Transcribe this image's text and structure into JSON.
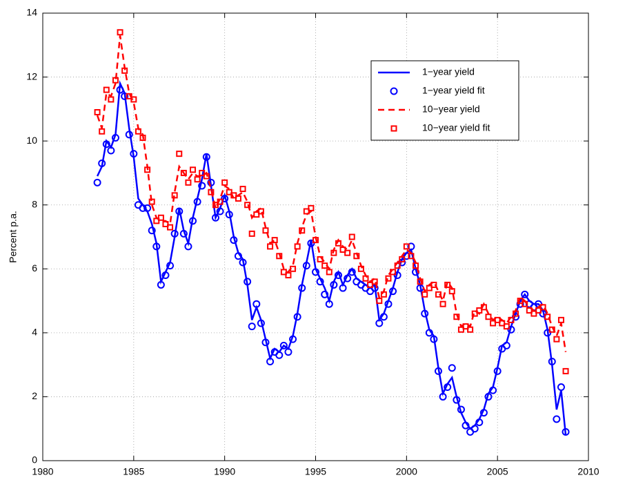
{
  "chart_data": {
    "type": "line",
    "ylabel": "Percent p.a.",
    "x": [
      1983,
      1983.25,
      1983.5,
      1983.75,
      1984,
      1984.25,
      1984.5,
      1984.75,
      1985,
      1985.25,
      1985.5,
      1985.75,
      1986,
      1986.25,
      1986.5,
      1986.75,
      1987,
      1987.25,
      1987.5,
      1987.75,
      1988,
      1988.25,
      1988.5,
      1988.75,
      1989,
      1989.25,
      1989.5,
      1989.75,
      1990,
      1990.25,
      1990.5,
      1990.75,
      1991,
      1991.25,
      1991.5,
      1991.75,
      1992,
      1992.25,
      1992.5,
      1992.75,
      1993,
      1993.25,
      1993.5,
      1993.75,
      1994,
      1994.25,
      1994.5,
      1994.75,
      1995,
      1995.25,
      1995.5,
      1995.75,
      1996,
      1996.25,
      1996.5,
      1996.75,
      1997,
      1997.25,
      1997.5,
      1997.75,
      1998,
      1998.25,
      1998.5,
      1998.75,
      1999,
      1999.25,
      1999.5,
      1999.75,
      2000,
      2000.25,
      2000.5,
      2000.75,
      2001,
      2001.25,
      2001.5,
      2001.75,
      2002,
      2002.25,
      2002.5,
      2002.75,
      2003,
      2003.25,
      2003.5,
      2003.75,
      2004,
      2004.25,
      2004.5,
      2004.75,
      2005,
      2005.25,
      2005.5,
      2005.75,
      2006,
      2006.25,
      2006.5,
      2006.75,
      2007,
      2007.25,
      2007.5,
      2007.75,
      2008,
      2008.25,
      2008.5,
      2008.75
    ],
    "series": [
      {
        "name": "1−year yield",
        "color": "#0000ff",
        "style": "solid",
        "values": [
          8.9,
          9.2,
          10.0,
          9.8,
          10.2,
          11.8,
          11.5,
          10.4,
          9.5,
          8.2,
          8.0,
          7.8,
          7.4,
          6.8,
          5.6,
          5.9,
          6.2,
          7.0,
          7.9,
          7.2,
          6.8,
          7.6,
          8.2,
          8.8,
          9.6,
          8.6,
          7.6,
          7.9,
          8.3,
          7.8,
          7.0,
          6.5,
          6.3,
          5.5,
          4.4,
          4.8,
          4.4,
          3.8,
          3.2,
          3.5,
          3.4,
          3.6,
          3.5,
          3.9,
          4.6,
          5.5,
          6.2,
          6.9,
          6.0,
          5.7,
          5.4,
          5.0,
          5.6,
          5.9,
          5.5,
          5.8,
          6.0,
          5.7,
          5.6,
          5.5,
          5.4,
          5.5,
          4.4,
          4.6,
          5.0,
          5.4,
          5.9,
          6.3,
          6.5,
          6.6,
          6.0,
          5.5,
          4.7,
          4.1,
          3.9,
          2.9,
          2.1,
          2.4,
          2.6,
          2.0,
          1.5,
          1.2,
          1.0,
          1.1,
          1.3,
          1.6,
          2.1,
          2.3,
          2.9,
          3.6,
          3.7,
          4.2,
          4.6,
          5.0,
          5.2,
          5.0,
          4.9,
          4.9,
          4.7,
          4.1,
          3.0,
          1.6,
          2.2,
          0.8
        ]
      },
      {
        "name": "1−year yield fit",
        "color": "#0000ff",
        "style": "circle",
        "values": [
          8.7,
          9.3,
          9.9,
          9.7,
          10.1,
          11.6,
          11.4,
          10.2,
          9.6,
          8.0,
          7.9,
          7.9,
          7.2,
          6.7,
          5.5,
          5.8,
          6.1,
          7.1,
          7.8,
          7.1,
          6.7,
          7.5,
          8.1,
          8.6,
          9.5,
          8.7,
          7.6,
          7.8,
          8.2,
          7.7,
          6.9,
          6.4,
          6.2,
          5.6,
          4.2,
          4.9,
          4.3,
          3.7,
          3.1,
          3.4,
          3.3,
          3.6,
          3.4,
          3.8,
          4.5,
          5.4,
          6.1,
          6.8,
          5.9,
          5.6,
          5.2,
          4.9,
          5.5,
          5.8,
          5.4,
          5.7,
          5.9,
          5.6,
          5.5,
          5.4,
          5.3,
          5.4,
          4.3,
          4.5,
          4.9,
          5.3,
          5.8,
          6.2,
          6.4,
          6.7,
          5.9,
          5.4,
          4.6,
          4.0,
          3.8,
          2.8,
          2.0,
          2.3,
          2.9,
          1.9,
          1.6,
          1.1,
          0.9,
          1.0,
          1.2,
          1.5,
          2.0,
          2.2,
          2.8,
          3.5,
          3.6,
          4.1,
          4.5,
          4.9,
          5.2,
          4.9,
          4.8,
          4.9,
          4.6,
          4.0,
          3.1,
          1.3,
          2.3,
          0.9
        ]
      },
      {
        "name": "10−year yield",
        "color": "#ff0000",
        "style": "dashed",
        "values": [
          10.8,
          10.4,
          11.5,
          11.4,
          11.8,
          13.3,
          12.3,
          11.5,
          11.2,
          10.4,
          10.2,
          9.2,
          8.0,
          7.6,
          7.5,
          7.5,
          7.4,
          8.4,
          9.2,
          9.0,
          8.8,
          9.0,
          8.9,
          8.9,
          9.0,
          8.5,
          7.9,
          8.2,
          8.6,
          8.5,
          8.2,
          8.3,
          8.4,
          8.1,
          7.6,
          7.8,
          7.9,
          7.3,
          6.8,
          6.9,
          6.5,
          6.0,
          5.9,
          6.1,
          6.8,
          7.3,
          7.7,
          7.8,
          7.0,
          6.4,
          6.2,
          6.0,
          6.6,
          6.9,
          6.7,
          6.6,
          6.9,
          6.5,
          6.1,
          5.8,
          5.6,
          5.7,
          5.1,
          5.3,
          5.8,
          6.0,
          6.2,
          6.4,
          6.6,
          6.5,
          6.2,
          5.7,
          5.3,
          5.5,
          5.6,
          5.3,
          5.0,
          5.6,
          5.4,
          4.6,
          4.2,
          4.3,
          4.2,
          4.7,
          4.6,
          4.9,
          4.6,
          4.4,
          4.5,
          4.4,
          4.3,
          4.5,
          4.7,
          5.1,
          5.0,
          4.8,
          4.7,
          4.8,
          4.9,
          4.6,
          4.2,
          3.9,
          4.3,
          3.4
        ]
      },
      {
        "name": "10−year yield fit",
        "color": "#ff0000",
        "style": "square",
        "values": [
          10.9,
          10.3,
          11.6,
          11.3,
          11.9,
          13.4,
          12.2,
          11.4,
          11.3,
          10.3,
          10.1,
          9.1,
          8.1,
          7.5,
          7.6,
          7.4,
          7.3,
          8.3,
          9.6,
          9.0,
          8.7,
          9.1,
          8.8,
          9.0,
          8.9,
          8.4,
          8.0,
          8.1,
          8.7,
          8.4,
          8.3,
          8.2,
          8.5,
          8.0,
          7.1,
          7.7,
          7.8,
          7.2,
          6.7,
          6.9,
          6.4,
          5.9,
          5.8,
          6.0,
          6.7,
          7.2,
          7.8,
          7.9,
          6.9,
          6.3,
          6.1,
          5.9,
          6.5,
          6.8,
          6.6,
          6.5,
          7.0,
          6.4,
          6.0,
          5.7,
          5.5,
          5.6,
          5.0,
          5.2,
          5.7,
          5.9,
          6.1,
          6.3,
          6.7,
          6.4,
          6.1,
          5.6,
          5.2,
          5.4,
          5.5,
          5.2,
          4.9,
          5.5,
          5.3,
          4.5,
          4.1,
          4.2,
          4.1,
          4.6,
          4.7,
          4.8,
          4.5,
          4.3,
          4.4,
          4.3,
          4.2,
          4.4,
          4.6,
          5.0,
          4.9,
          4.7,
          4.6,
          4.7,
          4.8,
          4.5,
          4.1,
          3.8,
          4.4,
          2.8
        ]
      }
    ],
    "xlim": [
      1980,
      2010
    ],
    "xticks": [
      1980,
      1985,
      1990,
      1995,
      2000,
      2005,
      2010
    ],
    "ylim": [
      0,
      14
    ],
    "yticks": [
      0,
      2,
      4,
      6,
      8,
      10,
      12,
      14
    ],
    "grid": true
  }
}
